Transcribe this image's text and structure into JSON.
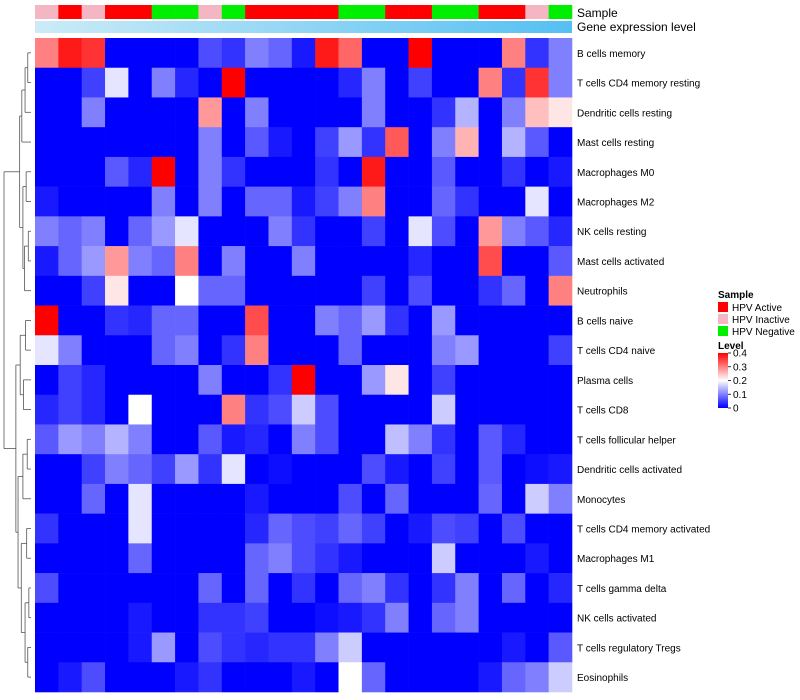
{
  "chart_data": {
    "type": "heatmap",
    "annotation_labels": {
      "sample": "Sample",
      "level": "Gene expression level"
    },
    "sample_annotation": [
      "Inactive",
      "Active",
      "Inactive",
      "Active",
      "Active",
      "Negative",
      "Negative",
      "Inactive",
      "Negative",
      "Active",
      "Active",
      "Active",
      "Active",
      "Negative",
      "Negative",
      "Active",
      "Active",
      "Negative",
      "Negative",
      "Active",
      "Active",
      "Inactive",
      "Negative"
    ],
    "rows": [
      "B cells memory",
      "T cells CD4 memory resting",
      "Dendritic cells resting",
      "Mast cells resting",
      "Macrophages M0",
      "Macrophages M2",
      "NK cells resting",
      "Mast cells activated",
      "Neutrophils",
      "B cells naive",
      "T cells CD4 naive",
      "Plasma cells",
      "T cells CD8",
      "T cells follicular helper",
      "Dendritic cells activated",
      "Monocytes",
      "T cells CD4 memory activated",
      "Macrophages M1",
      "T cells gamma delta",
      "NK cells activated",
      "T cells regulatory  Tregs",
      "Eosinophils"
    ],
    "values": [
      [
        0.3,
        0.38,
        0.36,
        0,
        0,
        0,
        0,
        0.06,
        0.04,
        0.1,
        0.08,
        0.02,
        0.38,
        0.32,
        0,
        0,
        0.4,
        0,
        0,
        0,
        0.3,
        0.04,
        0.1
      ],
      [
        0,
        0,
        0.05,
        0.18,
        0,
        0.1,
        0.03,
        0,
        0.4,
        0,
        0,
        0,
        0,
        0.03,
        0.1,
        0,
        0.05,
        0,
        0,
        0.3,
        0.04,
        0.36,
        0.1
      ],
      [
        0,
        0,
        0.1,
        0,
        0,
        0,
        0,
        0.28,
        0,
        0.1,
        0,
        0,
        0,
        0,
        0.1,
        0,
        0,
        0.04,
        0.14,
        0,
        0.1,
        0.25,
        0.22
      ],
      [
        0,
        0,
        0,
        0,
        0,
        0,
        0,
        0.1,
        0,
        0.07,
        0.02,
        0,
        0.05,
        0.12,
        0.04,
        0.33,
        0,
        0.1,
        0.26,
        0,
        0.14,
        0.07,
        0
      ],
      [
        0,
        0,
        0,
        0.07,
        0.03,
        0.4,
        0,
        0.1,
        0.04,
        0,
        0,
        0,
        0.04,
        0,
        0.38,
        0,
        0,
        0.07,
        0,
        0,
        0.04,
        0,
        0.02
      ],
      [
        0.02,
        0,
        0,
        0,
        0,
        0.1,
        0,
        0.1,
        0,
        0.08,
        0.08,
        0.02,
        0.05,
        0.1,
        0.3,
        0,
        0,
        0.08,
        0.04,
        0,
        0,
        0.18,
        0
      ],
      [
        0.1,
        0.08,
        0.1,
        0,
        0.08,
        0.12,
        0.18,
        0,
        0,
        0,
        0.1,
        0.04,
        0,
        0,
        0.05,
        0,
        0.18,
        0.06,
        0,
        0.28,
        0.1,
        0.07,
        0.03
      ],
      [
        0.02,
        0.08,
        0.12,
        0.28,
        0.1,
        0.08,
        0.3,
        0,
        0.1,
        0,
        0,
        0.1,
        0,
        0,
        0,
        0,
        0.03,
        0,
        0,
        0.34,
        0,
        0,
        0.07
      ],
      [
        0,
        0,
        0.05,
        0.22,
        0,
        0,
        0.2,
        0.08,
        0.08,
        0,
        0,
        0,
        0,
        0,
        0.05,
        0,
        0.06,
        0,
        0,
        0.04,
        0.08,
        0,
        0.3
      ],
      [
        0.4,
        0,
        0,
        0.04,
        0.03,
        0.08,
        0.08,
        0,
        0,
        0.34,
        0,
        0,
        0.1,
        0.08,
        0.12,
        0.04,
        0,
        0.12,
        0,
        0,
        0,
        0,
        0
      ],
      [
        0.18,
        0.1,
        0,
        0,
        0,
        0.08,
        0.1,
        0,
        0.04,
        0.3,
        0,
        0,
        0,
        0.08,
        0,
        0,
        0,
        0.1,
        0.12,
        0,
        0,
        0,
        0.05
      ],
      [
        0,
        0.05,
        0.03,
        0,
        0,
        0,
        0,
        0.1,
        0,
        0,
        0.04,
        0.4,
        0,
        0,
        0.12,
        0.22,
        0,
        0.05,
        0,
        0,
        0,
        0,
        0
      ],
      [
        0.03,
        0.05,
        0.03,
        0,
        0.2,
        0,
        0,
        0,
        0.3,
        0.04,
        0.06,
        0.16,
        0.06,
        0,
        0,
        0,
        0,
        0.16,
        0,
        0,
        0,
        0,
        0
      ],
      [
        0.07,
        0.12,
        0.1,
        0.14,
        0.1,
        0,
        0,
        0.07,
        0.02,
        0.03,
        0,
        0.1,
        0.06,
        0,
        0,
        0.15,
        0.1,
        0.04,
        0,
        0.07,
        0.03,
        0,
        0
      ],
      [
        0,
        0,
        0.05,
        0.1,
        0.08,
        0.05,
        0.12,
        0.04,
        0.18,
        0,
        0.01,
        0,
        0,
        0,
        0.06,
        0.02,
        0,
        0.05,
        0,
        0.07,
        0,
        0.01,
        0.02
      ],
      [
        0,
        0,
        0.08,
        0,
        0.18,
        0,
        0,
        0,
        0,
        0.02,
        0,
        0,
        0,
        0.06,
        0,
        0.08,
        0,
        0,
        0,
        0.08,
        0,
        0.16,
        0.1
      ],
      [
        0.04,
        0,
        0,
        0,
        0.18,
        0,
        0,
        0,
        0,
        0.03,
        0.08,
        0.06,
        0.05,
        0.08,
        0.05,
        0,
        0.02,
        0.06,
        0.05,
        0,
        0.06,
        0,
        0
      ],
      [
        0,
        0,
        0,
        0,
        0.08,
        0,
        0,
        0,
        0,
        0.08,
        0.1,
        0.06,
        0.04,
        0.02,
        0,
        0,
        0,
        0.16,
        0,
        0,
        0,
        0.02,
        0
      ],
      [
        0.06,
        0,
        0,
        0,
        0,
        0,
        0,
        0.08,
        0,
        0.08,
        0,
        0.04,
        0,
        0.08,
        0.1,
        0.04,
        0,
        0.04,
        0.1,
        0,
        0.08,
        0,
        0.03
      ],
      [
        0,
        0,
        0,
        0,
        0.02,
        0,
        0,
        0.04,
        0.04,
        0.05,
        0,
        0,
        0.01,
        0.02,
        0.04,
        0.1,
        0,
        0.08,
        0.1,
        0,
        0,
        0,
        0
      ],
      [
        0,
        0,
        0,
        0,
        0.02,
        0.12,
        0,
        0.06,
        0.04,
        0.03,
        0.04,
        0.04,
        0.1,
        0.16,
        0,
        0,
        0,
        0,
        0,
        0,
        0.02,
        0,
        0.07
      ],
      [
        0,
        0.02,
        0.06,
        0,
        0,
        0,
        0.02,
        0.04,
        0,
        0,
        0,
        0.02,
        0,
        0.2,
        0.08,
        0,
        0,
        0,
        0,
        0.02,
        0.08,
        0.1,
        0.16
      ]
    ],
    "legend": {
      "sample_title": "Sample",
      "sample_items": [
        {
          "label": "HPV Active",
          "color": "#ff0000"
        },
        {
          "label": "HPV Inactive",
          "color": "#f4b6c2"
        },
        {
          "label": "HPV Negative",
          "color": "#00ee00"
        }
      ],
      "level_title": "Level",
      "level_ticks": [
        "0.4",
        "0.3",
        "0.2",
        "0.1",
        "0"
      ],
      "level_range": [
        0,
        0.4
      ]
    },
    "colors": {
      "low": "#0000ff",
      "mid": "#ffffff",
      "high": "#ff0000",
      "Active": "#ff0000",
      "Inactive": "#f4b6c2",
      "Negative": "#00ee00",
      "level_bar_left": "#ccebf7",
      "level_bar_right": "#55c0f2"
    }
  }
}
